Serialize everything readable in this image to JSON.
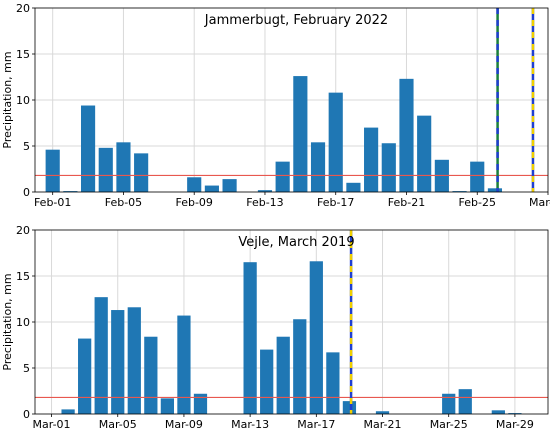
{
  "chart_data": [
    {
      "type": "bar",
      "title": "Jammerbugt, February 2022",
      "ylabel": "Precipitation, mm",
      "xlabel": "",
      "ylim": [
        0,
        20
      ],
      "xlim": [
        "2022-01-31",
        "2022-03-01"
      ],
      "grid": true,
      "yticks": [
        0,
        5,
        10,
        15,
        20
      ],
      "xticks": [
        "Feb-01",
        "Feb-05",
        "Feb-09",
        "Feb-13",
        "Feb-17",
        "Feb-21",
        "Feb-25",
        "Mar-01"
      ],
      "xtick_days": [
        1,
        5,
        9,
        13,
        17,
        21,
        25,
        29
      ],
      "categories": [
        "2022-02-01",
        "2022-02-02",
        "2022-02-03",
        "2022-02-04",
        "2022-02-05",
        "2022-02-06",
        "2022-02-07",
        "2022-02-08",
        "2022-02-09",
        "2022-02-10",
        "2022-02-11",
        "2022-02-12",
        "2022-02-13",
        "2022-02-14",
        "2022-02-15",
        "2022-02-16",
        "2022-02-17",
        "2022-02-18",
        "2022-02-19",
        "2022-02-20",
        "2022-02-21",
        "2022-02-22",
        "2022-02-23",
        "2022-02-24",
        "2022-02-25",
        "2022-02-26",
        "2022-02-27",
        "2022-02-28"
      ],
      "days": [
        1,
        2,
        3,
        4,
        5,
        6,
        7,
        8,
        9,
        10,
        11,
        12,
        13,
        14,
        15,
        16,
        17,
        18,
        19,
        20,
        21,
        22,
        23,
        24,
        25,
        26,
        27,
        28
      ],
      "values": [
        4.6,
        0.1,
        9.4,
        4.8,
        5.4,
        4.2,
        0,
        0,
        1.6,
        0.7,
        1.4,
        0,
        0.2,
        3.3,
        12.6,
        5.4,
        10.8,
        1.0,
        7.0,
        5.3,
        12.3,
        8.3,
        3.5,
        0.1,
        3.3,
        0.4,
        0,
        0
      ],
      "reference_line": 1.8,
      "vertical_markers": [
        {
          "date": "2022-02-26",
          "day": 26.15,
          "colors": [
            "#1a7f3c",
            "#1f3fcf"
          ]
        },
        {
          "date": "2022-02-28",
          "day": 28.15,
          "colors": [
            "#1f3fcf",
            "#f0d000"
          ]
        }
      ]
    },
    {
      "type": "bar",
      "title": "Vejle, March 2019",
      "ylabel": "Precipitation, mm",
      "xlabel": "",
      "ylim": [
        0,
        20
      ],
      "xlim": [
        "2019-02-28",
        "2019-03-31"
      ],
      "grid": true,
      "yticks": [
        0,
        5,
        10,
        15,
        20
      ],
      "xticks": [
        "Mar-01",
        "Mar-05",
        "Mar-09",
        "Mar-13",
        "Mar-17",
        "Mar-21",
        "Mar-25",
        "Mar-29"
      ],
      "xtick_days": [
        1,
        5,
        9,
        13,
        17,
        21,
        25,
        29
      ],
      "categories": [
        "2019-03-01",
        "2019-03-02",
        "2019-03-03",
        "2019-03-04",
        "2019-03-05",
        "2019-03-06",
        "2019-03-07",
        "2019-03-08",
        "2019-03-09",
        "2019-03-10",
        "2019-03-11",
        "2019-03-12",
        "2019-03-13",
        "2019-03-14",
        "2019-03-15",
        "2019-03-16",
        "2019-03-17",
        "2019-03-18",
        "2019-03-19",
        "2019-03-20",
        "2019-03-21",
        "2019-03-22",
        "2019-03-23",
        "2019-03-24",
        "2019-03-25",
        "2019-03-26",
        "2019-03-27",
        "2019-03-28",
        "2019-03-29",
        "2019-03-30",
        "2019-03-31"
      ],
      "days": [
        1,
        2,
        3,
        4,
        5,
        6,
        7,
        8,
        9,
        10,
        11,
        12,
        13,
        14,
        15,
        16,
        17,
        18,
        19,
        20,
        21,
        22,
        23,
        24,
        25,
        26,
        27,
        28,
        29,
        30,
        31
      ],
      "values": [
        0,
        0.5,
        8.2,
        12.7,
        11.3,
        11.6,
        8.4,
        1.7,
        10.7,
        2.2,
        0,
        0,
        16.5,
        7.0,
        8.4,
        10.3,
        16.6,
        6.7,
        1.4,
        0,
        0.3,
        0,
        0,
        0,
        2.2,
        2.7,
        0,
        0.4,
        0.1,
        0,
        0
      ],
      "reference_line": 1.8,
      "vertical_markers": [
        {
          "date": "2019-03-19",
          "day": 19.1,
          "colors": [
            "#1f3fcf",
            "#f0d000"
          ]
        }
      ]
    }
  ]
}
